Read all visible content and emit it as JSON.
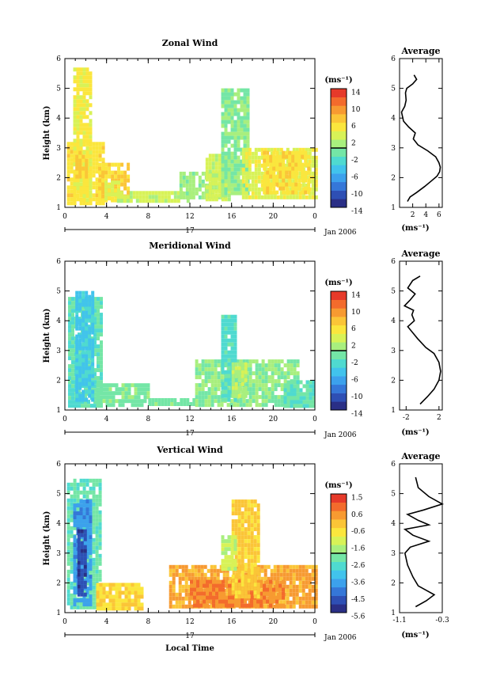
{
  "colors": {
    "scale": [
      "#2a2f86",
      "#2e4fb4",
      "#3577d8",
      "#3ca1ec",
      "#41c3ec",
      "#4fdad0",
      "#74e6a6",
      "#a8ef7e",
      "#d8f257",
      "#fbe63d",
      "#fbc537",
      "#f79a31",
      "#f36b2c",
      "#e63a2a"
    ]
  },
  "date_label": "Jan 2006",
  "day_label": "17",
  "x_ticks": [
    "0",
    "4",
    "8",
    "12",
    "16",
    "20",
    "0"
  ],
  "y_ticks": [
    "1",
    "2",
    "3",
    "4",
    "5",
    "6"
  ],
  "unit_label": "(ms⁻¹)",
  "avg_title": "Average",
  "height_label": "Height (km)",
  "local_time_label": "Local Time",
  "panels": [
    {
      "title": "Zonal Wind",
      "colorbar_ticks": [
        "14",
        "10",
        "6",
        "2",
        "-2",
        "-6",
        "-10",
        "-14"
      ],
      "chart_data": {
        "type": "heatmap",
        "title": "Zonal Wind",
        "xlabel": "",
        "ylabel": "Height (km)",
        "xlim": [
          0,
          24
        ],
        "ylim": [
          1,
          6
        ],
        "clim": [
          -16,
          16
        ],
        "regions": [
          {
            "t": [
              0.2,
              3.6
            ],
            "h": [
              1.2,
              3.2
            ],
            "v": 6
          },
          {
            "t": [
              0.8,
              2.5
            ],
            "h": [
              1.3,
              5.7
            ],
            "v": 5
          },
          {
            "t": [
              1.0,
              2.2
            ],
            "h": [
              2.1,
              2.9
            ],
            "v": 8
          },
          {
            "t": [
              3.2,
              6.0
            ],
            "h": [
              1.3,
              2.5
            ],
            "v": 7
          },
          {
            "t": [
              3.8,
              5.2
            ],
            "h": [
              1.3,
              1.9
            ],
            "v": 4
          },
          {
            "t": [
              5.0,
              12.0
            ],
            "h": [
              1.25,
              1.55
            ],
            "v": 3
          },
          {
            "t": [
              11.0,
              15.5
            ],
            "h": [
              1.3,
              2.2
            ],
            "v": 1
          },
          {
            "t": [
              13.5,
              15.8
            ],
            "h": [
              1.3,
              2.8
            ],
            "v": 3
          },
          {
            "t": [
              15.0,
              17.5
            ],
            "h": [
              1.5,
              5.0
            ],
            "v": 0
          },
          {
            "t": [
              17.0,
              24.0
            ],
            "h": [
              1.3,
              3.0
            ],
            "v": 4
          },
          {
            "t": [
              19.0,
              23.5
            ],
            "h": [
              1.5,
              2.9
            ],
            "v": 6
          }
        ],
        "profile": {
          "x": [
            2.2,
            2.6,
            2.0,
            1.1,
            0.9,
            1.0,
            0.8,
            0.3,
            0.6,
            1.4,
            2.4,
            2.1,
            2.8,
            4.3,
            5.5,
            6.0,
            6.2,
            6.1,
            5.7,
            4.9,
            3.8,
            2.6,
            1.6,
            1.2
          ],
          "h": [
            5.45,
            5.3,
            5.15,
            5.0,
            4.85,
            4.6,
            4.4,
            4.2,
            3.9,
            3.7,
            3.5,
            3.3,
            3.1,
            2.9,
            2.7,
            2.5,
            2.35,
            2.2,
            2.05,
            1.9,
            1.7,
            1.5,
            1.35,
            1.2
          ],
          "xlim": [
            0,
            6.5
          ],
          "x_ticks": [
            "2",
            "4",
            "6"
          ],
          "x_tick_values": [
            2,
            4,
            6
          ],
          "xlabel": "(ms⁻¹)"
        }
      }
    },
    {
      "title": "Meridional Wind",
      "colorbar_ticks": [
        "14",
        "10",
        "6",
        "2",
        "-2",
        "-6",
        "-10",
        "-14"
      ],
      "chart_data": {
        "type": "heatmap",
        "title": "Meridional Wind",
        "xlabel": "",
        "ylabel": "Height (km)",
        "xlim": [
          0,
          24
        ],
        "ylim": [
          1,
          6
        ],
        "clim": [
          -16,
          16
        ],
        "regions": [
          {
            "t": [
              0.3,
              3.5
            ],
            "h": [
              1.2,
              4.8
            ],
            "v": -2
          },
          {
            "t": [
              1.0,
              2.8
            ],
            "h": [
              1.3,
              5.0
            ],
            "v": -5
          },
          {
            "t": [
              3.0,
              8.0
            ],
            "h": [
              1.2,
              1.9
            ],
            "v": -1
          },
          {
            "t": [
              8.0,
              12.5
            ],
            "h": [
              1.15,
              1.4
            ],
            "v": -1
          },
          {
            "t": [
              12.5,
              22.5
            ],
            "h": [
              1.2,
              2.7
            ],
            "v": 0
          },
          {
            "t": [
              15.0,
              16.5
            ],
            "h": [
              1.3,
              4.2
            ],
            "v": -3
          },
          {
            "t": [
              16.0,
              17.5
            ],
            "h": [
              1.5,
              2.6
            ],
            "v": 2
          },
          {
            "t": [
              21.0,
              24.0
            ],
            "h": [
              1.2,
              2.0
            ],
            "v": -2
          }
        ],
        "profile": {
          "x": [
            -0.3,
            -1.2,
            -1.8,
            -0.9,
            -1.5,
            -2.2,
            -1.1,
            -1.3,
            -1.0,
            -1.8,
            -1.2,
            -0.6,
            0.4,
            1.4,
            2.0,
            2.2,
            2.0,
            1.4,
            0.6,
            -0.3
          ],
          "h": [
            5.5,
            5.35,
            5.1,
            4.9,
            4.7,
            4.5,
            4.35,
            4.2,
            4.0,
            3.8,
            3.6,
            3.4,
            3.1,
            2.9,
            2.6,
            2.3,
            2.0,
            1.7,
            1.45,
            1.2
          ],
          "xlim": [
            -2.8,
            2.4
          ],
          "x_ticks": [
            "-2",
            "2"
          ],
          "x_tick_values": [
            -2,
            2
          ],
          "xlabel": "(ms⁻¹)"
        }
      }
    },
    {
      "title": "Vertical Wind",
      "colorbar_ticks": [
        "1.5",
        "0.6",
        "-0.6",
        "-1.6",
        "-2.6",
        "-3.6",
        "-4.5",
        "-5.6"
      ],
      "chart_data": {
        "type": "heatmap",
        "title": "Vertical Wind",
        "xlabel": "Local Time",
        "ylabel": "Height (km)",
        "xlim": [
          0,
          24
        ],
        "ylim": [
          1,
          6
        ],
        "clim": [
          -6.2,
          2.0
        ],
        "regions": [
          {
            "t": [
              0.2,
              3.4
            ],
            "h": [
              1.2,
              5.5
            ],
            "v": -2.6
          },
          {
            "t": [
              0.8,
              2.6
            ],
            "h": [
              1.3,
              4.8
            ],
            "v": -4.2
          },
          {
            "t": [
              1.2,
              2.0
            ],
            "h": [
              1.6,
              3.8
            ],
            "v": -5.4
          },
          {
            "t": [
              3.0,
              7.5
            ],
            "h": [
              1.2,
              2.0
            ],
            "v": -0.4
          },
          {
            "t": [
              10.0,
              24.0
            ],
            "h": [
              1.2,
              2.6
            ],
            "v": 0.3
          },
          {
            "t": [
              12.0,
              21.0
            ],
            "h": [
              1.3,
              2.1
            ],
            "v": 0.8
          },
          {
            "t": [
              16.0,
              18.5
            ],
            "h": [
              1.5,
              4.8
            ],
            "v": -0.2
          },
          {
            "t": [
              15.0,
              16.5
            ],
            "h": [
              2.5,
              3.6
            ],
            "v": -1.4
          }
        ],
        "profile": {
          "x": [
            -0.8,
            -0.75,
            -0.55,
            -0.3,
            -0.65,
            -0.95,
            -0.75,
            -0.55,
            -1.0,
            -0.85,
            -0.55,
            -0.9,
            -1.0,
            -0.95,
            -0.85,
            -0.75,
            -0.6,
            -0.45,
            -0.6,
            -0.8
          ],
          "h": [
            5.55,
            5.2,
            4.9,
            4.65,
            4.45,
            4.3,
            4.1,
            3.95,
            3.8,
            3.6,
            3.4,
            3.2,
            3.0,
            2.6,
            2.2,
            1.9,
            1.75,
            1.6,
            1.4,
            1.2
          ],
          "xlim": [
            -1.1,
            -0.3
          ],
          "x_ticks": [
            "-1.1",
            "-0.3"
          ],
          "x_tick_values": [
            -1.1,
            -0.3
          ],
          "xlabel": "(ms⁻¹)"
        }
      }
    }
  ]
}
